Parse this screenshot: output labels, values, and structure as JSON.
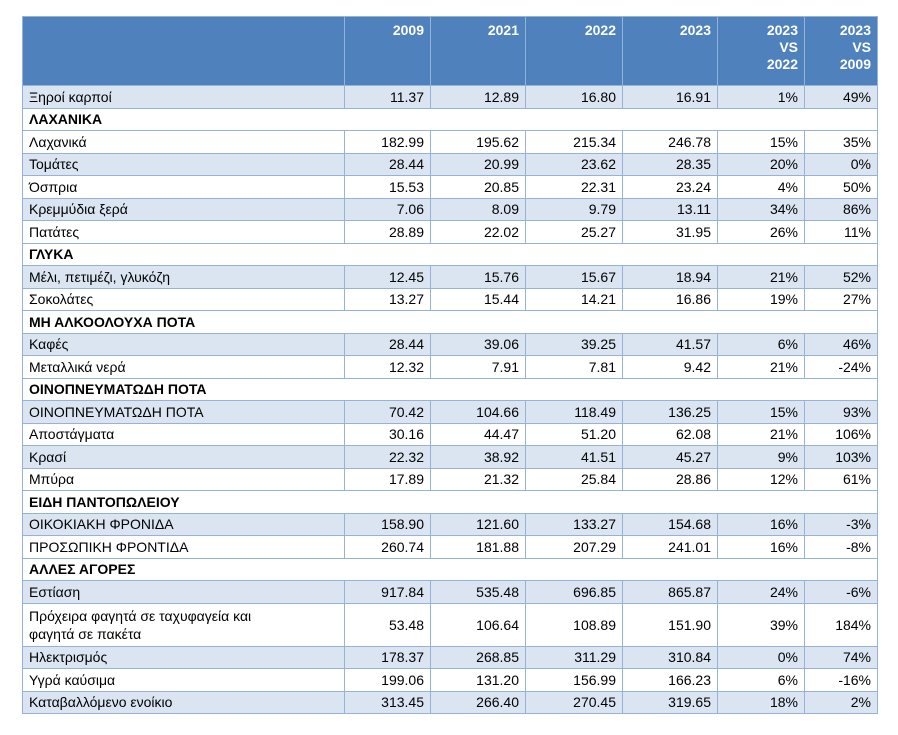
{
  "header": [
    "",
    "2009",
    "2021",
    "2022",
    "2023",
    "2023 VS 2022",
    "2023 VS 2009"
  ],
  "header_lines": [
    [],
    [
      "2009"
    ],
    [
      "2021"
    ],
    [
      "2022"
    ],
    [
      "2023"
    ],
    [
      "2023",
      "VS",
      "2022"
    ],
    [
      "2023",
      "VS",
      "2009"
    ]
  ],
  "rows": [
    {
      "type": "data",
      "label": "Ξηροί καρποί",
      "values": [
        "11.37",
        "12.89",
        "16.80",
        "16.91",
        "1%",
        "49%"
      ]
    },
    {
      "type": "section",
      "label": "ΛΑΧΑΝΙΚΑ"
    },
    {
      "type": "data",
      "label": "Λαχανικά",
      "values": [
        "182.99",
        "195.62",
        "215.34",
        "246.78",
        "15%",
        "35%"
      ]
    },
    {
      "type": "data",
      "label": "Τομάτες",
      "values": [
        "28.44",
        "20.99",
        "23.62",
        "28.35",
        "20%",
        "0%"
      ]
    },
    {
      "type": "data",
      "label": "Όσπρια",
      "values": [
        "15.53",
        "20.85",
        "22.31",
        "23.24",
        "4%",
        "50%"
      ]
    },
    {
      "type": "data",
      "label": "Κρεμμύδια ξερά",
      "values": [
        "7.06",
        "8.09",
        "9.79",
        "13.11",
        "34%",
        "86%"
      ]
    },
    {
      "type": "data",
      "label": "Πατάτες",
      "values": [
        "28.89",
        "22.02",
        "25.27",
        "31.95",
        "26%",
        "11%"
      ]
    },
    {
      "type": "section",
      "label": "ΓΛΥΚΑ"
    },
    {
      "type": "data",
      "label": "Μέλι, πετιμέζι, γλυκόζη",
      "values": [
        "12.45",
        "15.76",
        "15.67",
        "18.94",
        "21%",
        "52%"
      ]
    },
    {
      "type": "data",
      "label": "Σοκολάτες",
      "values": [
        "13.27",
        "15.44",
        "14.21",
        "16.86",
        "19%",
        "27%"
      ]
    },
    {
      "type": "section",
      "label": "ΜΗ ΑΛΚΟΟΛΟΥΧΑ ΠΟΤΑ"
    },
    {
      "type": "data",
      "label": "Καφές",
      "values": [
        "28.44",
        "39.06",
        "39.25",
        "41.57",
        "6%",
        "46%"
      ]
    },
    {
      "type": "data",
      "label": "Μεταλλικά νερά",
      "values": [
        "12.32",
        "7.91",
        "7.81",
        "9.42",
        "21%",
        "-24%"
      ]
    },
    {
      "type": "section",
      "label": "ΟΙΝΟΠΝΕΥΜΑΤΩΔΗ ΠΟΤΑ"
    },
    {
      "type": "data",
      "label": "ΟΙΝΟΠΝΕΥΜΑΤΩΔΗ ΠΟΤΑ",
      "values": [
        "70.42",
        "104.66",
        "118.49",
        "136.25",
        "15%",
        "93%"
      ]
    },
    {
      "type": "data",
      "label": "Αποστάγματα",
      "values": [
        "30.16",
        "44.47",
        "51.20",
        "62.08",
        "21%",
        "106%"
      ]
    },
    {
      "type": "data",
      "label": "Κρασί",
      "values": [
        "22.32",
        "38.92",
        "41.51",
        "45.27",
        "9%",
        "103%"
      ]
    },
    {
      "type": "data",
      "label": "Μπύρα",
      "values": [
        "17.89",
        "21.32",
        "25.84",
        "28.86",
        "12%",
        "61%"
      ]
    },
    {
      "type": "section",
      "label": "ΕΙΔΗ ΠΑΝΤΟΠΩΛΕΙΟΥ"
    },
    {
      "type": "data",
      "label": "ΟΙΚΟΚΙΑΚΗ ΦΡΟΝΙΔΑ",
      "values": [
        "158.90",
        "121.60",
        "133.27",
        "154.68",
        "16%",
        "-3%"
      ]
    },
    {
      "type": "data",
      "label": "ΠΡΟΣΩΠΙΚΗ ΦΡΟΝΤΙΔΑ",
      "values": [
        "260.74",
        "181.88",
        "207.29",
        "241.01",
        "16%",
        "-8%"
      ]
    },
    {
      "type": "section",
      "label": "ΑΛΛΕΣ ΑΓΟΡΕΣ"
    },
    {
      "type": "data",
      "label": "Εστίαση",
      "values": [
        "917.84",
        "535.48",
        "696.85",
        "865.87",
        "24%",
        "-6%"
      ]
    },
    {
      "type": "data",
      "label": "Πρόχειρα φαγητά σε ταχυφαγεία και φαγητά σε πακέτα",
      "label_lines": [
        "Πρόχειρα φαγητά σε ταχυφαγεία και",
        "φαγητά σε πακέτα"
      ],
      "values": [
        "53.48",
        "106.64",
        "108.89",
        "151.90",
        "39%",
        "184%"
      ]
    },
    {
      "type": "data",
      "label": "Ηλεκτρισμός",
      "values": [
        "178.37",
        "268.85",
        "311.29",
        "310.84",
        "0%",
        "74%"
      ]
    },
    {
      "type": "data",
      "label": "Υγρά καύσιμα",
      "values": [
        "199.06",
        "131.20",
        "156.99",
        "166.23",
        "6%",
        "-16%"
      ]
    },
    {
      "type": "data",
      "label": "Καταβαλλόμενο ενοίκιο",
      "values": [
        "313.45",
        "266.40",
        "270.45",
        "319.65",
        "18%",
        "2%"
      ]
    }
  ],
  "colors": {
    "header_bg": "#4f81bd",
    "header_text": "#ffffff",
    "alt_row_bg": "#dbe5f1",
    "border": "#95b3d7"
  }
}
